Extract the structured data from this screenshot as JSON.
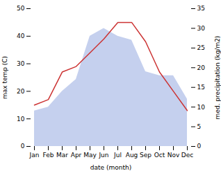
{
  "chart_data": {
    "type": "line",
    "categories": [
      "Jan",
      "Feb",
      "Mar",
      "Apr",
      "May",
      "Jun",
      "Jul",
      "Aug",
      "Sep",
      "Oct",
      "Nov",
      "Dec"
    ],
    "xlabel": "date (month)",
    "ylabel": "max temp (C)",
    "y2label": "med. precipitation (kg/m2)",
    "series": [
      {
        "type": "area",
        "axis": "y2",
        "color": "#c5d0ee",
        "values": [
          9,
          10,
          14,
          17,
          28,
          30,
          28,
          27,
          19,
          18,
          18,
          12
        ]
      },
      {
        "type": "line",
        "color": "#cc3333",
        "values": [
          15,
          17,
          27,
          29,
          34,
          39,
          45,
          45,
          38,
          27,
          20,
          13
        ]
      }
    ],
    "ylim": [
      0,
      50
    ],
    "yticks": [
      0,
      10,
      20,
      30,
      40,
      50
    ],
    "y2lim": [
      0,
      35
    ],
    "y2ticks": [
      0,
      5,
      10,
      15,
      20,
      25,
      30,
      35
    ]
  }
}
